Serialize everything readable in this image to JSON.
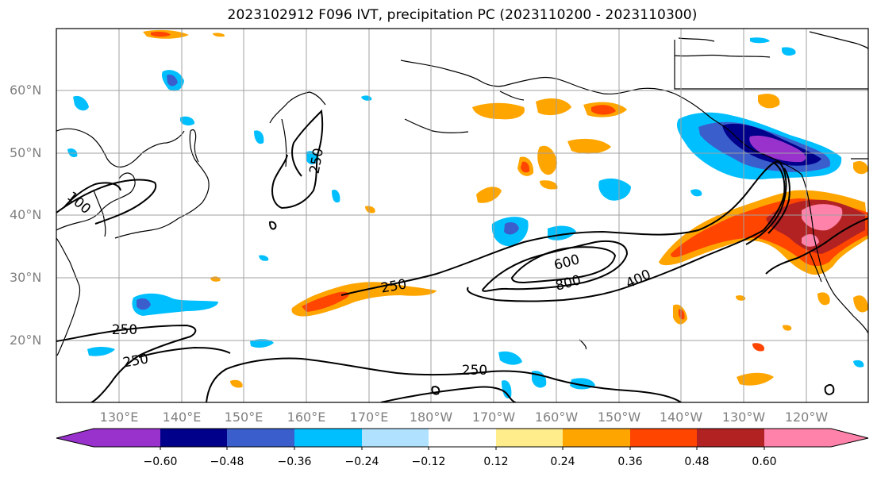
{
  "figure": {
    "title": "2023102912 F096 IVT, precipitation PC (2023110200 - 2023110300)"
  },
  "map": {
    "lat_labels": [
      "60°N",
      "50°N",
      "40°N",
      "30°N",
      "20°N"
    ],
    "lon_labels": [
      "130°E",
      "140°E",
      "150°E",
      "160°E",
      "170°E",
      "180°W",
      "170°W",
      "160°W",
      "150°W",
      "140°W",
      "130°W",
      "120°W"
    ],
    "contour_labels": [
      "250",
      "100",
      "250",
      "250",
      "600",
      "800",
      "400",
      "250",
      "250",
      "250"
    ],
    "contour_field": "IVT",
    "shaded_field": "precipitation PC"
  },
  "colorbar": {
    "tick_labels": [
      "−0.60",
      "−0.48",
      "−0.36",
      "−0.24",
      "−0.12",
      "0.12",
      "0.24",
      "0.36",
      "0.48",
      "0.60"
    ],
    "colors": [
      "#9932cc",
      "#00008b",
      "#3a5fcd",
      "#00bfff",
      "#b0e2ff",
      "#ffffff",
      "#ffec8b",
      "#ffa500",
      "#ff4500",
      "#b22222",
      "#ff82ab"
    ],
    "extend": "both"
  }
}
